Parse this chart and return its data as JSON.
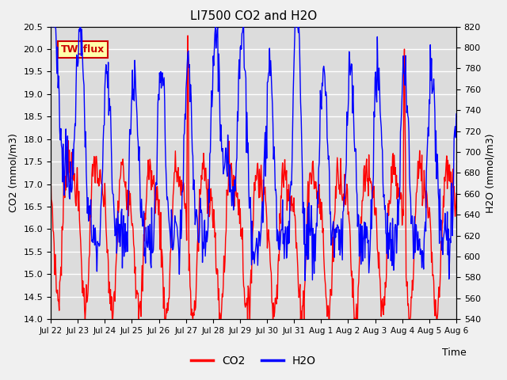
{
  "title": "LI7500 CO2 and H2O",
  "xlabel": "Time",
  "ylabel_left": "CO2 (mmol/m3)",
  "ylabel_right": "H2O (mmol/m3)",
  "ylim_left": [
    14.0,
    20.5
  ],
  "ylim_right": [
    540,
    820
  ],
  "yticks_left": [
    14.0,
    14.5,
    15.0,
    15.5,
    16.0,
    16.5,
    17.0,
    17.5,
    18.0,
    18.5,
    19.0,
    19.5,
    20.0,
    20.5
  ],
  "yticks_right": [
    540,
    560,
    580,
    600,
    620,
    640,
    660,
    680,
    700,
    720,
    740,
    760,
    780,
    800,
    820
  ],
  "xtick_labels": [
    "Jul 22",
    "Jul 23",
    "Jul 24",
    "Jul 25",
    "Jul 26",
    "Jul 27",
    "Jul 28",
    "Jul 29",
    "Jul 30",
    "Jul 31",
    "Aug 1",
    "Aug 2",
    "Aug 3",
    "Aug 4",
    "Aug 5",
    "Aug 6"
  ],
  "co2_color": "#FF0000",
  "h2o_color": "#0000FF",
  "line_width": 1.0,
  "plot_bg_color": "#DCDCDC",
  "fig_bg_color": "#F0F0F0",
  "grid_color": "#FFFFFF",
  "label_box_text": "TW_flux",
  "label_box_bg": "#FFFFAA",
  "label_box_edge": "#CC0000",
  "legend_co2": "CO2",
  "legend_h2o": "H2O",
  "n_points": 720,
  "days": 15.0
}
